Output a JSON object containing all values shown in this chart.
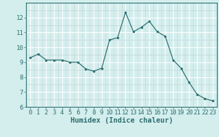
{
  "x": [
    0,
    1,
    2,
    3,
    4,
    5,
    6,
    7,
    8,
    9,
    10,
    11,
    12,
    13,
    14,
    15,
    16,
    17,
    18,
    19,
    20,
    21,
    22,
    23
  ],
  "y": [
    9.3,
    9.55,
    9.15,
    9.15,
    9.15,
    9.0,
    9.0,
    8.55,
    8.4,
    8.6,
    10.5,
    10.65,
    12.35,
    11.05,
    11.35,
    11.75,
    11.05,
    10.75,
    9.15,
    8.6,
    7.65,
    6.85,
    6.55,
    6.4
  ],
  "xlabel": "Humidex (Indice chaleur)",
  "ylim": [
    6,
    13
  ],
  "xlim": [
    -0.5,
    23.5
  ],
  "yticks": [
    6,
    7,
    8,
    9,
    10,
    11,
    12
  ],
  "xticks": [
    0,
    1,
    2,
    3,
    4,
    5,
    6,
    7,
    8,
    9,
    10,
    11,
    12,
    13,
    14,
    15,
    16,
    17,
    18,
    19,
    20,
    21,
    22,
    23
  ],
  "line_color": "#2d6e6e",
  "marker_color": "#2d6e6e",
  "bg_color": "#d4eeee",
  "grid_major_color": "#ffffff",
  "grid_minor_color": "#c8dada",
  "tick_color": "#2d6e6e",
  "label_color": "#2d6e6e",
  "font_size": 6.5,
  "xlabel_fontsize": 7.5,
  "title": ""
}
